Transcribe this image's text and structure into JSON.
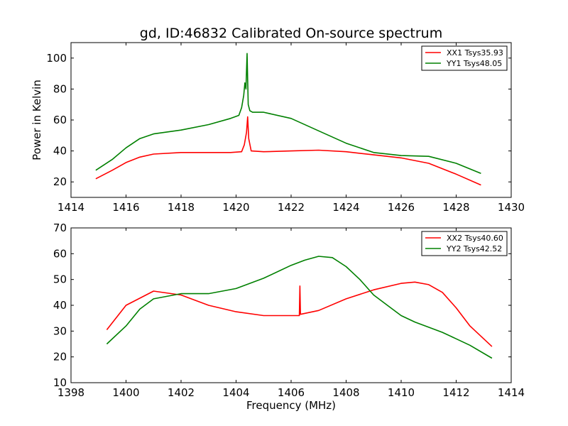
{
  "title": "gd, ID:46832 Calibrated On-source spectrum",
  "colors": {
    "xx": "#ff0000",
    "yy": "#008000",
    "frame": "#000000",
    "background": "#ffffff"
  },
  "chart_data": [
    {
      "type": "line",
      "xlim": [
        1414,
        1430
      ],
      "ylim": [
        10,
        110
      ],
      "x_ticks": [
        1414,
        1416,
        1418,
        1420,
        1422,
        1424,
        1426,
        1428,
        1430
      ],
      "y_ticks": [
        20,
        40,
        60,
        80,
        100
      ],
      "xlabel": "",
      "ylabel": "Power in Kelvin",
      "grid": false,
      "legend_position": "top-right",
      "series": [
        {
          "name": "XX1 Tsys35.93",
          "color": "#ff0000",
          "x": [
            1414.9,
            1415.5,
            1416,
            1416.5,
            1417,
            1418,
            1419,
            1419.8,
            1420.2,
            1420.3,
            1420.38,
            1420.42,
            1420.46,
            1420.55,
            1421,
            1422,
            1423,
            1424,
            1425,
            1426,
            1427,
            1428,
            1428.9
          ],
          "values": [
            22,
            27.5,
            32.5,
            36,
            38,
            39,
            39,
            39,
            39.5,
            44,
            52,
            62,
            48,
            40,
            39.5,
            40,
            40.5,
            39.5,
            37.5,
            35.5,
            32,
            25,
            18
          ]
        },
        {
          "name": "YY1 Tsys48.05",
          "color": "#008000",
          "x": [
            1414.9,
            1415.5,
            1416,
            1416.5,
            1417,
            1418,
            1419,
            1419.8,
            1420.1,
            1420.2,
            1420.28,
            1420.32,
            1420.36,
            1420.4,
            1420.44,
            1420.5,
            1420.6,
            1421,
            1422,
            1423,
            1424,
            1425,
            1426,
            1427,
            1428,
            1428.9
          ],
          "values": [
            27.5,
            34.5,
            42,
            48,
            51,
            53.5,
            57,
            61,
            63,
            68,
            76,
            84,
            80,
            103,
            70,
            66,
            65,
            65,
            61,
            53,
            45,
            39,
            37,
            36.5,
            32,
            25.5
          ]
        }
      ]
    },
    {
      "type": "line",
      "xlim": [
        1398,
        1414
      ],
      "ylim": [
        10,
        70
      ],
      "x_ticks": [
        1398,
        1400,
        1402,
        1404,
        1406,
        1408,
        1410,
        1412,
        1414
      ],
      "y_ticks": [
        10,
        20,
        30,
        40,
        50,
        60,
        70
      ],
      "xlabel": "Frequency (MHz)",
      "ylabel": "",
      "grid": false,
      "legend_position": "top-right",
      "series": [
        {
          "name": "XX2 Tsys40.60",
          "color": "#ff0000",
          "x": [
            1399.3,
            1400,
            1401,
            1402,
            1403,
            1404,
            1405,
            1406,
            1406.3,
            1406.32,
            1406.34,
            1407,
            1408,
            1409,
            1410,
            1410.5,
            1411,
            1411.5,
            1412,
            1412.5,
            1413.3
          ],
          "values": [
            30.5,
            40,
            45.5,
            44,
            40,
            37.5,
            36,
            36,
            36,
            47.5,
            36.5,
            38,
            42.5,
            46,
            48.5,
            49,
            48,
            45,
            39,
            32,
            24
          ]
        },
        {
          "name": "YY2 Tsys42.52",
          "color": "#008000",
          "x": [
            1399.3,
            1400,
            1400.5,
            1401,
            1402,
            1403,
            1404,
            1405,
            1406,
            1406.5,
            1407,
            1407.5,
            1408,
            1408.5,
            1409,
            1409.5,
            1410,
            1410.5,
            1411,
            1411.5,
            1412,
            1412.5,
            1413.3
          ],
          "values": [
            25,
            32,
            38.5,
            42.5,
            44.5,
            44.5,
            46.5,
            50.5,
            55.5,
            57.5,
            59,
            58.5,
            55,
            50,
            44,
            40,
            36,
            33.5,
            31.5,
            29.5,
            27,
            24.5,
            19.5
          ]
        }
      ]
    }
  ]
}
